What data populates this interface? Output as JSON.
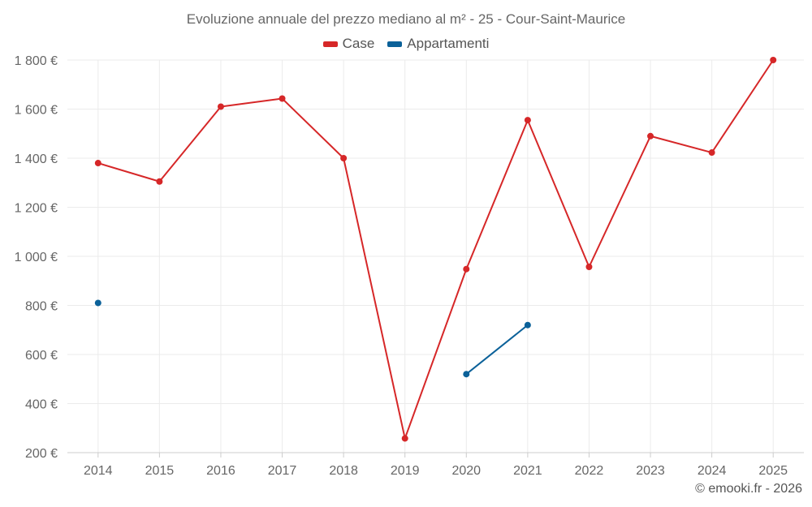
{
  "chart_data": {
    "type": "line",
    "title": "Evoluzione annuale del prezzo mediano al m² - 25 - Cour-Saint-Maurice",
    "xlabel": "",
    "ylabel": "",
    "categories": [
      "2014",
      "2015",
      "2016",
      "2017",
      "2018",
      "2019",
      "2020",
      "2021",
      "2022",
      "2023",
      "2024",
      "2025"
    ],
    "ylim": [
      200,
      1800
    ],
    "yticks": [
      200,
      400,
      600,
      800,
      1000,
      1200,
      1400,
      1600,
      1800
    ],
    "ytick_labels": [
      "200 €",
      "400 €",
      "600 €",
      "800 €",
      "1 000 €",
      "1 200 €",
      "1 400 €",
      "1 600 €",
      "1 800 €"
    ],
    "grid": true,
    "legend_position": "top-center",
    "series": [
      {
        "name": "Case",
        "color": "#d62728",
        "values": [
          1380,
          1305,
          1610,
          1643,
          1400,
          258,
          948,
          1555,
          957,
          1490,
          1423,
          1800
        ]
      },
      {
        "name": "Appartamenti",
        "color": "#0b6199",
        "values": [
          810,
          null,
          null,
          null,
          null,
          null,
          520,
          720,
          null,
          null,
          null,
          null
        ]
      }
    ]
  },
  "footer": {
    "credit": "© emooki.fr - 2026"
  }
}
